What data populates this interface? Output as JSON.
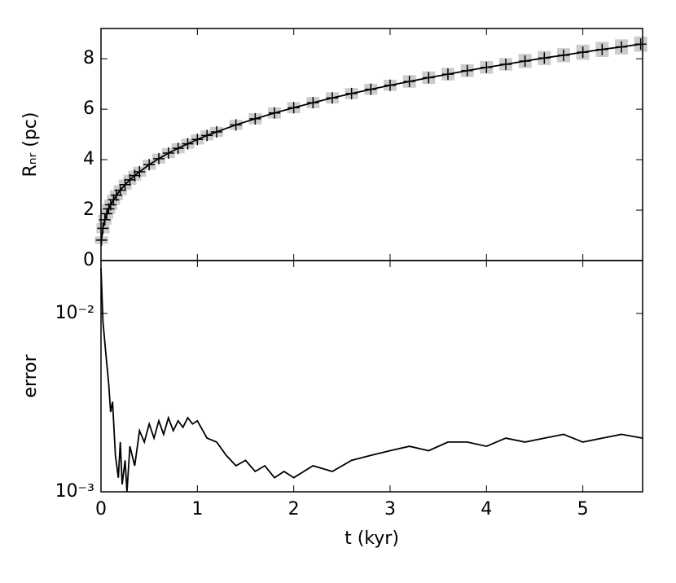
{
  "chart_data": [
    {
      "type": "line",
      "ylabel": "Rₙᵣ (pc)",
      "xlim": [
        0,
        5.62
      ],
      "ylim": [
        0,
        9.2
      ],
      "yticks": [
        0,
        2,
        4,
        6,
        8
      ],
      "x": [
        0.005,
        0.02,
        0.04,
        0.06,
        0.08,
        0.1,
        0.13,
        0.16,
        0.2,
        0.25,
        0.3,
        0.35,
        0.4,
        0.5,
        0.6,
        0.7,
        0.8,
        0.9,
        1.0,
        1.1,
        1.2,
        1.4,
        1.6,
        1.8,
        2.0,
        2.2,
        2.4,
        2.6,
        2.8,
        3.0,
        3.2,
        3.4,
        3.6,
        3.8,
        4.0,
        4.2,
        4.4,
        4.6,
        4.8,
        5.0,
        5.2,
        5.4,
        5.6
      ],
      "series": [
        {
          "color": "#000000",
          "band_color": "#cccccc",
          "values": [
            0.81,
            1.28,
            1.62,
            1.86,
            2.05,
            2.21,
            2.41,
            2.59,
            2.79,
            3.01,
            3.2,
            3.37,
            3.52,
            3.8,
            4.04,
            4.26,
            4.45,
            4.63,
            4.8,
            4.96,
            5.1,
            5.38,
            5.62,
            5.85,
            6.06,
            6.26,
            6.45,
            6.62,
            6.79,
            6.95,
            7.1,
            7.25,
            7.39,
            7.53,
            7.66,
            7.78,
            7.91,
            8.03,
            8.14,
            8.26,
            8.37,
            8.47,
            8.58
          ],
          "errors": [
            0.15,
            0.2,
            0.2,
            0.2,
            0.2,
            0.2,
            0.2,
            0.2,
            0.2,
            0.2,
            0.2,
            0.2,
            0.2,
            0.2,
            0.2,
            0.2,
            0.2,
            0.2,
            0.2,
            0.2,
            0.2,
            0.2,
            0.22,
            0.22,
            0.22,
            0.22,
            0.22,
            0.22,
            0.22,
            0.22,
            0.25,
            0.25,
            0.25,
            0.25,
            0.25,
            0.25,
            0.28,
            0.28,
            0.28,
            0.3,
            0.3,
            0.3,
            0.3
          ]
        }
      ]
    },
    {
      "type": "line",
      "ylabel": "error",
      "xlabel": "t (kyr)",
      "yscale": "log",
      "xlim": [
        0,
        5.62
      ],
      "ylim": [
        0.001,
        0.0198
      ],
      "xticks": [
        0,
        1,
        2,
        3,
        4,
        5
      ],
      "yticks": [
        {
          "value": 0.001,
          "label": "10⁻³"
        },
        {
          "value": 0.01,
          "label": "10⁻²"
        }
      ],
      "x": [
        0,
        0.02,
        0.05,
        0.08,
        0.1,
        0.12,
        0.15,
        0.18,
        0.2,
        0.22,
        0.25,
        0.27,
        0.3,
        0.35,
        0.4,
        0.45,
        0.5,
        0.55,
        0.6,
        0.65,
        0.7,
        0.75,
        0.8,
        0.85,
        0.9,
        0.95,
        1.0,
        1.1,
        1.2,
        1.3,
        1.4,
        1.5,
        1.6,
        1.7,
        1.8,
        1.9,
        2.0,
        2.2,
        2.4,
        2.6,
        2.8,
        3.0,
        3.2,
        3.4,
        3.6,
        3.8,
        4.0,
        4.2,
        4.4,
        4.6,
        4.8,
        5.0,
        5.2,
        5.4,
        5.62
      ],
      "series": [
        {
          "color": "#000000",
          "values": [
            0.018,
            0.009,
            0.006,
            0.004,
            0.0028,
            0.0032,
            0.0016,
            0.0012,
            0.0019,
            0.0011,
            0.0015,
            0.001,
            0.0018,
            0.0014,
            0.0022,
            0.0019,
            0.0024,
            0.002,
            0.0025,
            0.0021,
            0.0026,
            0.0022,
            0.0025,
            0.0023,
            0.0026,
            0.0024,
            0.0025,
            0.002,
            0.0019,
            0.0016,
            0.0014,
            0.0015,
            0.0013,
            0.0014,
            0.0012,
            0.0013,
            0.0012,
            0.0014,
            0.0013,
            0.0015,
            0.0016,
            0.0017,
            0.0018,
            0.0017,
            0.0019,
            0.0019,
            0.0018,
            0.002,
            0.0019,
            0.002,
            0.0021,
            0.0019,
            0.002,
            0.0021,
            0.002
          ]
        }
      ]
    }
  ]
}
